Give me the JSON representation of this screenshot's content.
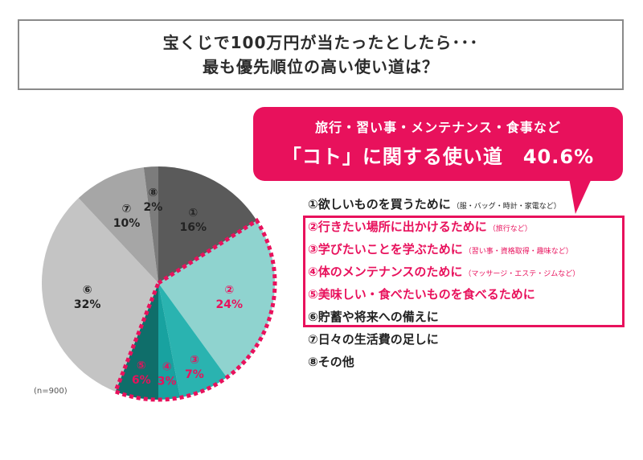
{
  "title": {
    "line1": "宝くじで100万円が当たったとしたら･･･",
    "line2": "最も優先順位の高い使い道は？"
  },
  "callout": {
    "line1": "旅行・習い事・メンテナンス・食事など",
    "line2": "「コト」に関する使い道　40.6%"
  },
  "sample_size": "(n=900)",
  "colors": {
    "accent": "#e8115c",
    "slice1": "#5a5a5a",
    "slice2": "#8fd3cf",
    "slice3": "#2ab3b0",
    "slice4": "#18a2a0",
    "slice5": "#0f6e6a",
    "slice6": "#c4c4c4",
    "slice7": "#a6a6a6",
    "slice8": "#7c7c7c"
  },
  "chart_data": {
    "type": "pie",
    "slices": [
      {
        "num": "①",
        "value": 16,
        "label_pct": "16%",
        "label": "欲しいものを買うために",
        "note": "（服・バッグ・時計・家電など）",
        "koto": false
      },
      {
        "num": "②",
        "value": 24,
        "label_pct": "24%",
        "label": "行きたい場所に出かけるために",
        "note": "（旅行など）",
        "koto": true
      },
      {
        "num": "③",
        "value": 7,
        "label_pct": "7%",
        "label": "学びたいことを学ぶために",
        "note": "（習い事・資格取得・趣味など）",
        "koto": true
      },
      {
        "num": "④",
        "value": 3,
        "label_pct": "3%",
        "label": "体のメンテナンスのために",
        "note": "（マッサージ・エステ・ジムなど）",
        "koto": true
      },
      {
        "num": "⑤",
        "value": 6,
        "label_pct": "6%",
        "label": "美味しい・食べたいものを食べるために",
        "note": "",
        "koto": true
      },
      {
        "num": "⑥",
        "value": 32,
        "label_pct": "32%",
        "label": "貯蓄や将来への備えに",
        "note": "",
        "koto": false
      },
      {
        "num": "⑦",
        "value": 10,
        "label_pct": "10%",
        "label": "日々の生活費の足しに",
        "note": "",
        "koto": false
      },
      {
        "num": "⑧",
        "value": 2,
        "label_pct": "2%",
        "label": "その他",
        "note": "",
        "koto": false
      }
    ]
  }
}
